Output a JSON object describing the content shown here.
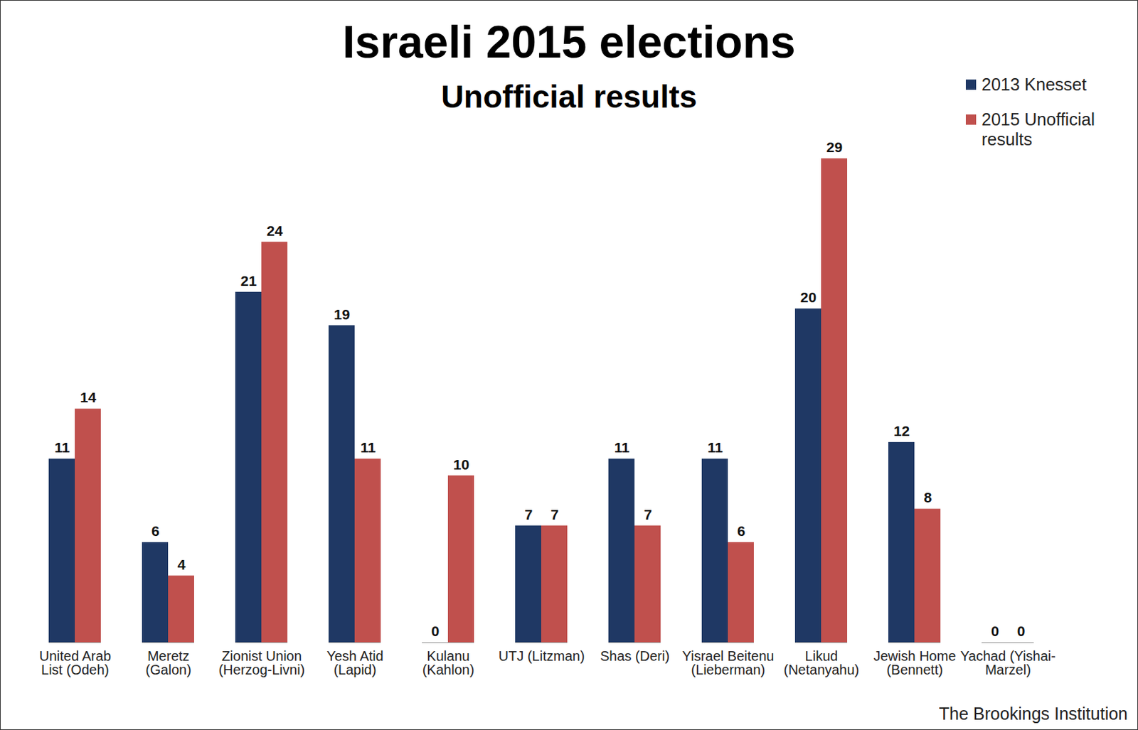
{
  "chart_data": {
    "type": "bar",
    "title": "Israeli 2015 elections",
    "subtitle": "Unofficial results",
    "source": "The Brookings Institution",
    "categories": [
      "United Arab\nList (Odeh)",
      "Meretz\n(Galon)",
      "Zionist Union\n(Herzog-Livni)",
      "Yesh Atid\n(Lapid)",
      "Kulanu\n(Kahlon)",
      "UTJ (Litzman)",
      "Shas (Deri)",
      "Yisrael Beitenu\n(Lieberman)",
      "Likud\n(Netanyahu)",
      "Jewish Home\n(Bennett)",
      "Yachad (Yishai-\nMarzel)"
    ],
    "series": [
      {
        "name": "2013 Knesset",
        "color": "#1f3864",
        "values": [
          11,
          6,
          21,
          19,
          0,
          7,
          11,
          11,
          20,
          12,
          0
        ]
      },
      {
        "name": "2015 Unofficial results",
        "color": "#c0504d",
        "values": [
          14,
          4,
          24,
          11,
          10,
          7,
          7,
          6,
          29,
          8,
          0
        ]
      }
    ],
    "data_labels": true,
    "tick_labels": "x",
    "legend": "top-right",
    "grid": false
  }
}
